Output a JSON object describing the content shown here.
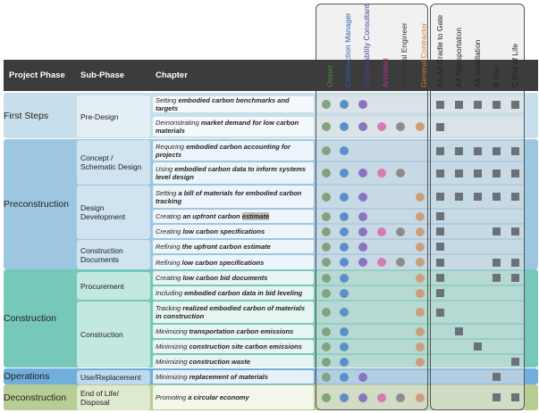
{
  "header": {
    "project_phase": "Project Phase",
    "sub_phase": "Sub-Phase",
    "chapter": "Chapter"
  },
  "roles": [
    {
      "label": "Owner",
      "color": "#4a8a3c"
    },
    {
      "label": "Construction Manager",
      "color": "#2b62b8"
    },
    {
      "label": "Sustainability Consultant",
      "color": "#5a3a9a"
    },
    {
      "label": "Architect",
      "color": "#c0309a"
    },
    {
      "label": "Structural Engineer",
      "color": "#333333"
    },
    {
      "label": "General Contractor",
      "color": "#d9772a"
    }
  ],
  "stages": [
    {
      "label": "A1-A3 Cradle to Gate"
    },
    {
      "label": "A4 Transportation"
    },
    {
      "label": "A5 Installation"
    },
    {
      "label": "B Use"
    },
    {
      "label": "C End of Life"
    }
  ],
  "dot_colors": [
    "#7fa47d",
    "#5b8fc9",
    "#8b73bf",
    "#d57bb3",
    "#8c8c8c",
    "#c9a07e"
  ],
  "phases": [
    {
      "label": "First Steps",
      "band_color": "#c7dfec"
    },
    {
      "label": "Preconstruction",
      "band_color": "#9dc6e1"
    },
    {
      "label": "Construction",
      "band_color": "#76c8b8"
    },
    {
      "label": "Operations",
      "band_color": "#70aedb"
    },
    {
      "label": "Deconstruction",
      "band_color": "#b6cd93"
    }
  ],
  "sub_phases": [
    {
      "label": "Pre-Design"
    },
    {
      "label": "Concept / Schematic Design"
    },
    {
      "label": "Design Development"
    },
    {
      "label": "Construction Documents"
    },
    {
      "label": "Procurement"
    },
    {
      "label": "Construction"
    },
    {
      "label": "Use/Replacement"
    },
    {
      "label": "End of Life/ Disposal"
    }
  ],
  "chapters": [
    {
      "pre": "Setting ",
      "bold": "embodied carbon benchmarks and targets",
      "hl": "",
      "roles": [
        1,
        1,
        1,
        0,
        0,
        0
      ],
      "stages": [
        1,
        1,
        1,
        1,
        1
      ]
    },
    {
      "pre": "Demonstrating ",
      "bold": "market demand for low carbon materials",
      "hl": "",
      "roles": [
        1,
        1,
        1,
        1,
        1,
        1
      ],
      "stages": [
        1,
        0,
        0,
        0,
        0
      ]
    },
    {
      "pre": "Requiring ",
      "bold": "embodied carbon accounting for projects",
      "hl": "",
      "roles": [
        1,
        1,
        0,
        0,
        0,
        0
      ],
      "stages": [
        1,
        1,
        1,
        1,
        1
      ]
    },
    {
      "pre": "Using ",
      "bold": "embodied carbon data to inform systems level design",
      "hl": "",
      "roles": [
        1,
        1,
        1,
        1,
        1,
        0
      ],
      "stages": [
        1,
        1,
        1,
        1,
        1
      ]
    },
    {
      "pre": "Setting ",
      "bold": "a bill of materials for embodied carbon tracking",
      "hl": "",
      "roles": [
        1,
        1,
        1,
        0,
        0,
        1
      ],
      "stages": [
        1,
        1,
        1,
        1,
        1
      ]
    },
    {
      "pre": "Creating ",
      "bold": "an upfront carbon ",
      "hl": "estimate",
      "roles": [
        1,
        1,
        1,
        0,
        0,
        1
      ],
      "stages": [
        1,
        0,
        0,
        0,
        0
      ]
    },
    {
      "pre": "Creating ",
      "bold": "low carbon specifications",
      "hl": "",
      "roles": [
        1,
        1,
        1,
        1,
        1,
        1
      ],
      "stages": [
        1,
        0,
        0,
        1,
        1
      ]
    },
    {
      "pre": "Refining ",
      "bold": "the upfront carbon estimate",
      "hl": "",
      "roles": [
        1,
        1,
        1,
        0,
        0,
        1
      ],
      "stages": [
        1,
        0,
        0,
        0,
        0
      ]
    },
    {
      "pre": "Refining ",
      "bold": "low carbon specifications",
      "hl": "",
      "roles": [
        1,
        1,
        1,
        1,
        1,
        1
      ],
      "stages": [
        1,
        0,
        0,
        1,
        1
      ]
    },
    {
      "pre": "Creating ",
      "bold": "low carbon bid documents",
      "hl": "",
      "roles": [
        1,
        1,
        0,
        0,
        0,
        1
      ],
      "stages": [
        1,
        0,
        0,
        1,
        1
      ]
    },
    {
      "pre": "Including ",
      "bold": "embodied carbon data in bid leveling",
      "hl": "",
      "roles": [
        1,
        1,
        0,
        0,
        0,
        1
      ],
      "stages": [
        1,
        0,
        0,
        0,
        0
      ]
    },
    {
      "pre": "Tracking ",
      "bold": "realized embodied carbon of materials in construction",
      "hl": "",
      "roles": [
        1,
        1,
        0,
        0,
        0,
        1
      ],
      "stages": [
        1,
        0,
        0,
        0,
        0
      ]
    },
    {
      "pre": "Minimizing ",
      "bold": "transportation carbon emissions",
      "hl": "",
      "roles": [
        1,
        1,
        0,
        0,
        0,
        1
      ],
      "stages": [
        0,
        1,
        0,
        0,
        0
      ]
    },
    {
      "pre": "Minimizing ",
      "bold": "construction site carbon emissions",
      "hl": "",
      "roles": [
        1,
        1,
        0,
        0,
        0,
        1
      ],
      "stages": [
        0,
        0,
        1,
        0,
        0
      ]
    },
    {
      "pre": "Minimizing ",
      "bold": "construction waste",
      "hl": "",
      "roles": [
        1,
        1,
        0,
        0,
        0,
        1
      ],
      "stages": [
        0,
        0,
        0,
        0,
        1
      ]
    },
    {
      "pre": "Minimizing ",
      "bold": "replacement of materials",
      "hl": "",
      "roles": [
        1,
        1,
        1,
        0,
        0,
        0
      ],
      "stages": [
        0,
        0,
        0,
        1,
        0
      ]
    },
    {
      "pre": "Promoting ",
      "bold": "a circular economy",
      "hl": "",
      "roles": [
        1,
        1,
        1,
        1,
        1,
        1
      ],
      "stages": [
        0,
        0,
        0,
        1,
        1
      ]
    }
  ]
}
